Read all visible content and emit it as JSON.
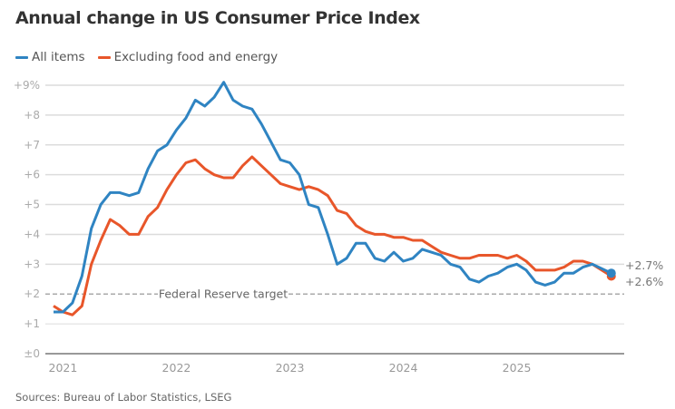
{
  "chart_data": {
    "type": "line",
    "title": "Annual change in US Consumer Price Index",
    "source": "Sources: Bureau of Labor Statistics, LSEG",
    "x": [
      "2020-12",
      "2021-01",
      "2021-02",
      "2021-03",
      "2021-04",
      "2021-05",
      "2021-06",
      "2021-07",
      "2021-08",
      "2021-09",
      "2021-10",
      "2021-11",
      "2021-12",
      "2022-01",
      "2022-02",
      "2022-03",
      "2022-04",
      "2022-05",
      "2022-06",
      "2022-07",
      "2022-08",
      "2022-09",
      "2022-10",
      "2022-11",
      "2022-12",
      "2023-01",
      "2023-02",
      "2023-03",
      "2023-04",
      "2023-05",
      "2023-06",
      "2023-07",
      "2023-08",
      "2023-09",
      "2023-10",
      "2023-11",
      "2023-12",
      "2024-01",
      "2024-02",
      "2024-03",
      "2024-04",
      "2024-05",
      "2024-06",
      "2024-07",
      "2024-08",
      "2024-09",
      "2024-10",
      "2024-11",
      "2024-12",
      "2025-01",
      "2025-02",
      "2025-03",
      "2025-04",
      "2025-05",
      "2025-06",
      "2025-07",
      "2025-08",
      "2025-09",
      "2025-11"
    ],
    "series": [
      {
        "name": "All items",
        "color": "#2f84c2",
        "end_label": "+2.7%",
        "values": [
          1.4,
          1.4,
          1.7,
          2.6,
          4.2,
          5.0,
          5.4,
          5.4,
          5.3,
          5.4,
          6.2,
          6.8,
          7.0,
          7.5,
          7.9,
          8.5,
          8.3,
          8.6,
          9.1,
          8.5,
          8.3,
          8.2,
          7.7,
          7.1,
          6.5,
          6.4,
          6.0,
          5.0,
          4.9,
          4.0,
          3.0,
          3.2,
          3.7,
          3.7,
          3.2,
          3.1,
          3.4,
          3.1,
          3.2,
          3.5,
          3.4,
          3.3,
          3.0,
          2.9,
          2.5,
          2.4,
          2.6,
          2.7,
          2.9,
          3.0,
          2.8,
          2.4,
          2.3,
          2.4,
          2.7,
          2.7,
          2.9,
          3.0,
          2.7
        ]
      },
      {
        "name": "Excluding food and energy",
        "color": "#e8562a",
        "end_label": "+2.6%",
        "values": [
          1.6,
          1.4,
          1.3,
          1.6,
          3.0,
          3.8,
          4.5,
          4.3,
          4.0,
          4.0,
          4.6,
          4.9,
          5.5,
          6.0,
          6.4,
          6.5,
          6.2,
          6.0,
          5.9,
          5.9,
          6.3,
          6.6,
          6.3,
          6.0,
          5.7,
          5.6,
          5.5,
          5.6,
          5.5,
          5.3,
          4.8,
          4.7,
          4.3,
          4.1,
          4.0,
          4.0,
          3.9,
          3.9,
          3.8,
          3.8,
          3.6,
          3.4,
          3.3,
          3.2,
          3.2,
          3.3,
          3.3,
          3.3,
          3.2,
          3.3,
          3.1,
          2.8,
          2.8,
          2.8,
          2.9,
          3.1,
          3.1,
          3.0,
          2.6
        ]
      }
    ],
    "yticks": [
      "±0",
      "+1",
      "+2",
      "+3",
      "+4",
      "+5",
      "+6",
      "+7",
      "+8",
      "+9%"
    ],
    "ylim": [
      0,
      9
    ],
    "xticks": [
      {
        "date": "2021-01",
        "label": "2021"
      },
      {
        "date": "2022-01",
        "label": "2022"
      },
      {
        "date": "2023-01",
        "label": "2023"
      },
      {
        "date": "2024-01",
        "label": "2024"
      },
      {
        "date": "2025-01",
        "label": "2025"
      }
    ],
    "reference_line": {
      "value": 2,
      "label": "Federal Reserve target"
    },
    "grid": true,
    "legend": "top-left"
  }
}
